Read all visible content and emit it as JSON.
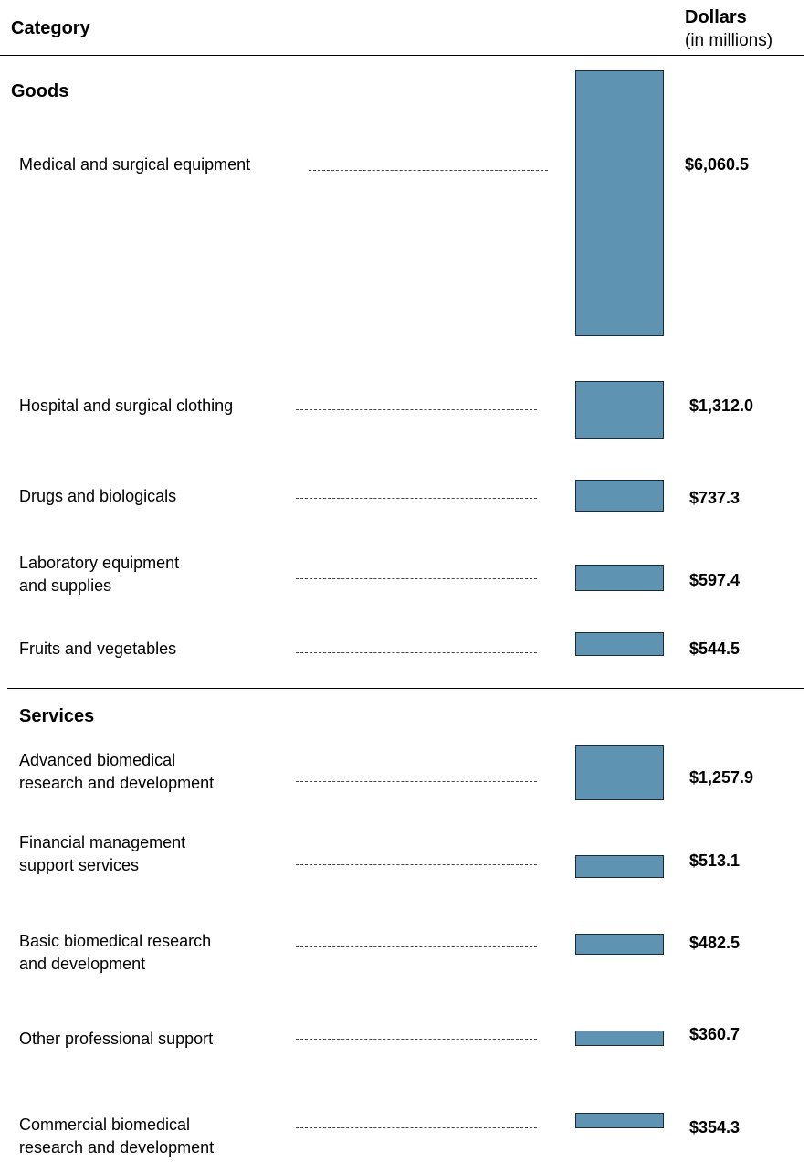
{
  "header": {
    "category_label": "Category",
    "dollars_label": "Dollars",
    "unit_label": "(in millions)"
  },
  "colors": {
    "bar": "#5e93b2",
    "bar_border": "#1c2a33"
  },
  "chart_data": {
    "type": "bar",
    "orientation": "horizontal-rows",
    "sections": [
      {
        "name": "Goods",
        "items": [
          {
            "label": "Medical and surgical equipment",
            "value": 6060.5,
            "value_label": "$6,060.5"
          },
          {
            "label": "Hospital and surgical clothing",
            "value": 1312.0,
            "value_label": "$1,312.0"
          },
          {
            "label": "Drugs and biologicals",
            "value": 737.3,
            "value_label": "$737.3"
          },
          {
            "label": "Laboratory equipment\nand supplies",
            "value": 597.4,
            "value_label": "$597.4"
          },
          {
            "label": "Fruits and vegetables",
            "value": 544.5,
            "value_label": "$544.5"
          }
        ]
      },
      {
        "name": "Services",
        "items": [
          {
            "label": "Advanced biomedical\nresearch and development",
            "value": 1257.9,
            "value_label": "$1,257.9"
          },
          {
            "label": "Financial management\nsupport services",
            "value": 513.1,
            "value_label": "$513.1"
          },
          {
            "label": "Basic biomedical research\nand development",
            "value": 482.5,
            "value_label": "$482.5"
          },
          {
            "label": "Other professional support",
            "value": 360.7,
            "value_label": "$360.7"
          },
          {
            "label": "Commercial biomedical\nresearch and development",
            "value": 354.3,
            "value_label": "$354.3"
          }
        ]
      }
    ]
  }
}
